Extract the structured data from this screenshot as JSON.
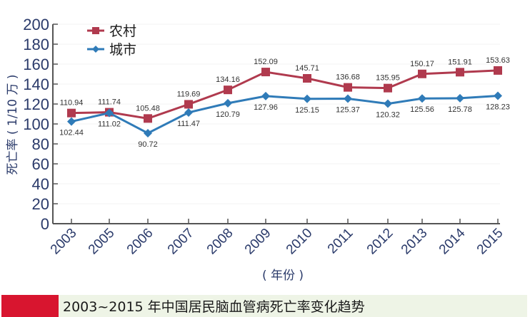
{
  "chart_data": {
    "type": "line",
    "title": "",
    "caption": "2003~2015 年中国居民脑血管病死亡率变化趋势",
    "xlabel": "( 年份 )",
    "ylabel": "死亡率 ( 1/10 万 )",
    "categories": [
      "2003",
      "2005",
      "2006",
      "2007",
      "2008",
      "2009",
      "2010",
      "2011",
      "2012",
      "2013",
      "2014",
      "2015"
    ],
    "ylim": [
      0,
      200
    ],
    "yticks": [
      0,
      20,
      40,
      60,
      80,
      100,
      120,
      140,
      160,
      180,
      200
    ],
    "grid": false,
    "legend_position": "top-left",
    "series": [
      {
        "name": "农村",
        "color": "#b03a4e",
        "marker": "square",
        "values": [
          110.94,
          111.74,
          105.48,
          119.69,
          134.16,
          152.09,
          145.71,
          136.68,
          135.95,
          150.17,
          151.91,
          153.63
        ],
        "labels": [
          "110.94",
          "111.74",
          "105.48",
          "119.69",
          "134.16",
          "152.09",
          "145.71",
          "136.68",
          "135.95",
          "150.17",
          "151.91",
          "153.63"
        ]
      },
      {
        "name": "城市",
        "color": "#2f7bb8",
        "marker": "diamond",
        "values": [
          102.44,
          111.02,
          90.72,
          111.47,
          120.79,
          127.96,
          125.15,
          125.37,
          120.32,
          125.56,
          125.78,
          128.23
        ],
        "labels": [
          "102.44",
          "111.02",
          "90.72",
          "111.47",
          "120.79",
          "127.96",
          "125.15",
          "125.37",
          "120.32",
          "125.56",
          "125.78",
          "128.23"
        ]
      }
    ]
  },
  "legend": {
    "rural": "农村",
    "urban": "城市"
  },
  "axis": {
    "ylabel": "死亡率 ( 1/10 万 )",
    "xlabel": "( 年份 )"
  },
  "caption": {
    "text": "2003~2015 年中国居民脑血管病死亡率变化趋势",
    "accent_color": "#d8152f",
    "bg_color": "#eef4e6"
  }
}
